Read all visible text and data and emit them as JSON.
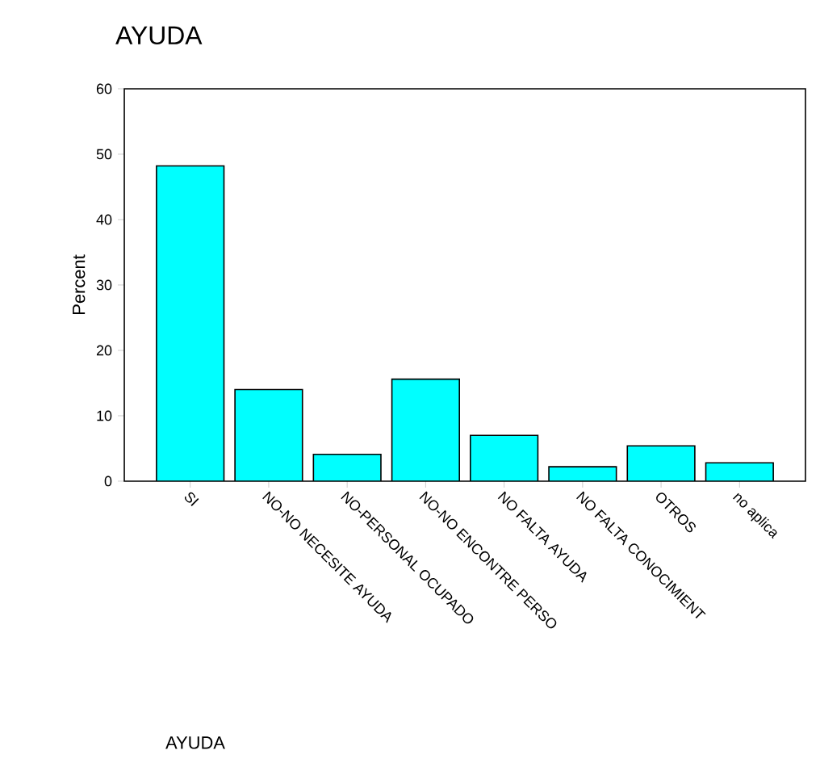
{
  "chart_data": {
    "type": "bar",
    "title": "AYUDA",
    "annotations": [
      "AYUDA"
    ],
    "ylabel": "Percent",
    "categories": [
      "SI",
      "NO-NO NECESITE AYUDA",
      "NO-PERSONAL OCUPADO",
      "NO-NO ENCONTRE PERSO",
      "NO FALTA AYUDA",
      "NO FALTA CONOCIMIENT",
      "OTROS",
      "no aplica"
    ],
    "values": [
      48.2,
      14.0,
      4.1,
      15.6,
      7.0,
      2.2,
      5.4,
      2.8
    ],
    "color": "#00ffff",
    "ylim": [
      0,
      60
    ],
    "yticks": [
      0,
      10,
      20,
      30,
      40,
      50,
      60
    ],
    "grid": false
  }
}
